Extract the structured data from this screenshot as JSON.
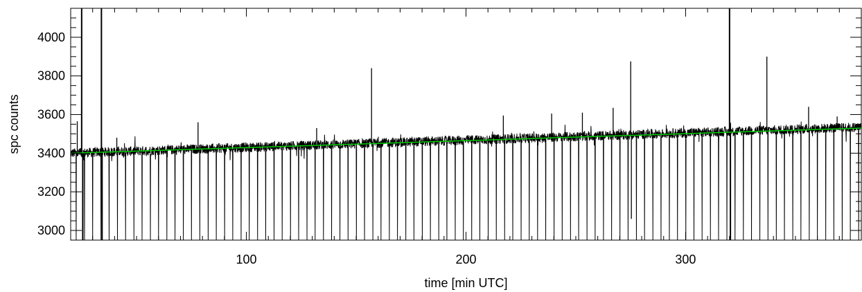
{
  "chart_data": {
    "type": "line",
    "title": "",
    "xlabel": "time [min UTC]",
    "ylabel": "spc counts",
    "xlim": [
      20,
      380
    ],
    "ylim": [
      2950,
      4150
    ],
    "x_ticks": [
      100,
      200,
      300
    ],
    "y_ticks": [
      3000,
      3200,
      3400,
      3600,
      3800,
      4000
    ],
    "grid": false,
    "series": [
      {
        "color": "#000000",
        "noise_amplitude": 25,
        "sample_interval": 0.1,
        "gap_interval": 3.75,
        "gap_floor": 2950,
        "baseline": {
          "x": [
            20,
            380
          ],
          "y": [
            3400,
            3535
          ]
        },
        "spikes": [
          {
            "x": 23,
            "y": 3565
          },
          {
            "x": 25,
            "y": 4150
          },
          {
            "x": 25.5,
            "y": 2950
          },
          {
            "x": 34,
            "y": 4150
          },
          {
            "x": 34.3,
            "y": 2950
          },
          {
            "x": 41,
            "y": 3480
          },
          {
            "x": 78,
            "y": 3560
          },
          {
            "x": 132,
            "y": 3530
          },
          {
            "x": 157,
            "y": 3840
          },
          {
            "x": 217,
            "y": 3595
          },
          {
            "x": 239,
            "y": 3605
          },
          {
            "x": 253,
            "y": 3610
          },
          {
            "x": 267,
            "y": 3635
          },
          {
            "x": 275,
            "y": 3875
          },
          {
            "x": 275.3,
            "y": 3060
          },
          {
            "x": 320,
            "y": 4150
          },
          {
            "x": 320.4,
            "y": 2950
          },
          {
            "x": 337,
            "y": 3900
          },
          {
            "x": 356,
            "y": 3640
          },
          {
            "x": 369,
            "y": 3590
          }
        ]
      },
      {
        "color": "#00cc00",
        "x": [
          20,
          380
        ],
        "y": [
          3400,
          3530
        ]
      }
    ]
  }
}
